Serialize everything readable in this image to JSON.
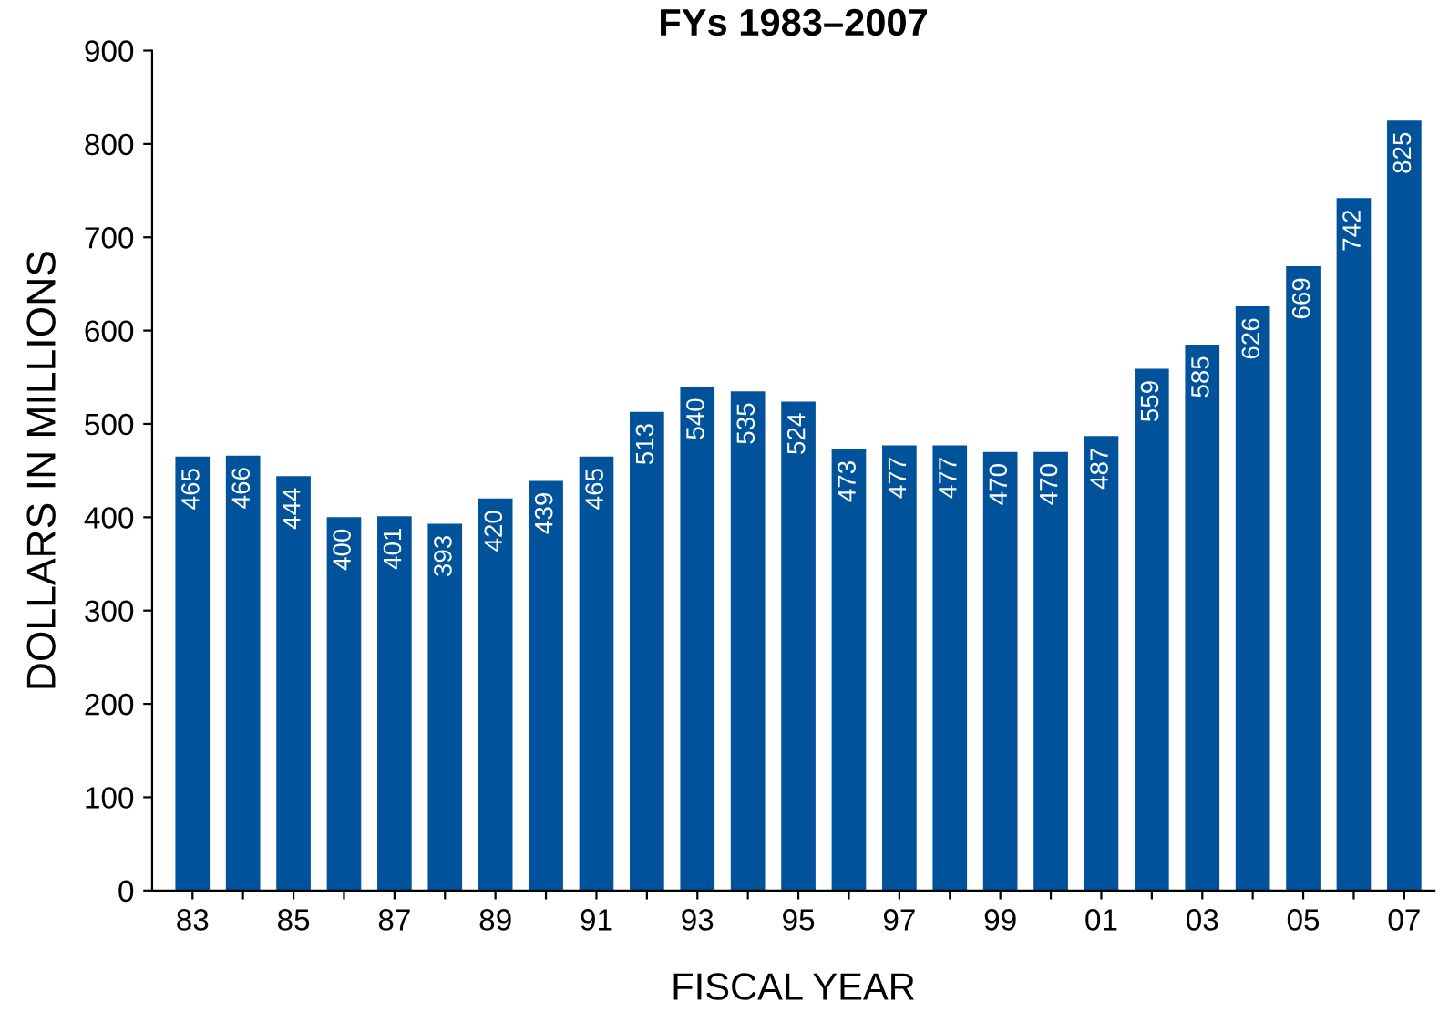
{
  "chart_data": {
    "type": "bar",
    "title": "FYs 1983–2007",
    "xlabel": "FISCAL YEAR",
    "ylabel": "DOLLARS IN MILLIONS",
    "categories": [
      "83",
      null,
      "85",
      null,
      "87",
      null,
      "89",
      null,
      "91",
      null,
      "93",
      null,
      "95",
      null,
      "97",
      null,
      "99",
      null,
      "01",
      null,
      "03",
      null,
      "05",
      null,
      "07"
    ],
    "values": [
      465,
      466,
      444,
      400,
      401,
      393,
      420,
      439,
      465,
      513,
      540,
      535,
      524,
      473,
      477,
      477,
      470,
      470,
      487,
      559,
      585,
      626,
      669,
      742,
      825
    ],
    "color": "#00539b",
    "ylim": [
      0,
      900
    ],
    "yticks": [
      0,
      100,
      200,
      300,
      400,
      500,
      600,
      700,
      800,
      900
    ],
    "grid": false,
    "data_labels": true
  }
}
